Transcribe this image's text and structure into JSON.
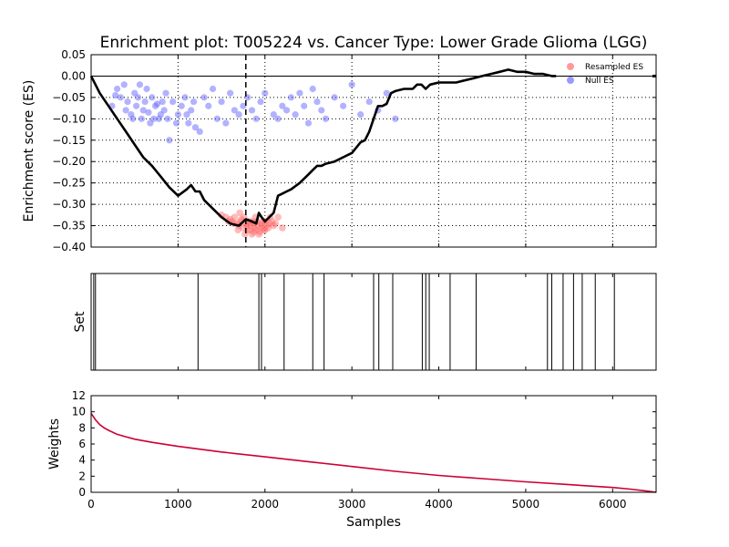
{
  "chart_data": {
    "title": "Enrichment plot: T005224 vs. Cancer Type: Lower Grade Glioma (LGG)",
    "panels": [
      {
        "name": "enrichment",
        "type": "line+scatter",
        "ylabel": "Enrichment score (ES)",
        "xlim": [
          0,
          6500
        ],
        "ylim": [
          -0.4,
          0.05
        ],
        "yticks": [
          0.05,
          0.0,
          -0.05,
          -0.1,
          -0.15,
          -0.2,
          -0.25,
          -0.3,
          -0.35,
          -0.4
        ],
        "ytick_labels": [
          "0.05",
          "0.00",
          "−0.05",
          "−0.10",
          "−0.15",
          "−0.20",
          "−0.25",
          "−0.30",
          "−0.35",
          "−0.40"
        ],
        "xticks": [
          0,
          1000,
          2000,
          3000,
          4000,
          5000,
          6000
        ],
        "grid": true,
        "vline_x": 1780,
        "legend": {
          "placement": "top-right",
          "entries": [
            {
              "label": "Resampled ES",
              "color": "#ff9999"
            },
            {
              "label": "Null ES",
              "color": "#9999ff"
            }
          ]
        },
        "es_curve": {
          "color": "#000000",
          "x": [
            0,
            100,
            200,
            300,
            400,
            500,
            600,
            700,
            800,
            900,
            1000,
            1100,
            1150,
            1200,
            1250,
            1300,
            1400,
            1500,
            1600,
            1700,
            1780,
            1850,
            1900,
            1930,
            1960,
            2000,
            2100,
            2150,
            2200,
            2250,
            2300,
            2400,
            2500,
            2550,
            2600,
            2650,
            2700,
            2800,
            2900,
            3000,
            3100,
            3150,
            3200,
            3250,
            3300,
            3350,
            3400,
            3450,
            3500,
            3600,
            3700,
            3750,
            3800,
            3850,
            3900,
            4000,
            4100,
            4200,
            4300,
            4400,
            4500,
            4600,
            4700,
            4800,
            4900,
            5000,
            5100,
            5200,
            5300,
            5350
          ],
          "y": [
            0.0,
            -0.04,
            -0.07,
            -0.1,
            -0.13,
            -0.16,
            -0.19,
            -0.21,
            -0.235,
            -0.26,
            -0.28,
            -0.265,
            -0.255,
            -0.27,
            -0.27,
            -0.29,
            -0.31,
            -0.33,
            -0.345,
            -0.35,
            -0.335,
            -0.34,
            -0.345,
            -0.32,
            -0.33,
            -0.34,
            -0.32,
            -0.28,
            -0.275,
            -0.27,
            -0.265,
            -0.25,
            -0.23,
            -0.22,
            -0.21,
            -0.21,
            -0.205,
            -0.2,
            -0.19,
            -0.18,
            -0.155,
            -0.15,
            -0.13,
            -0.1,
            -0.07,
            -0.07,
            -0.065,
            -0.04,
            -0.035,
            -0.03,
            -0.03,
            -0.02,
            -0.02,
            -0.03,
            -0.02,
            -0.015,
            -0.015,
            -0.015,
            -0.01,
            -0.005,
            0.0,
            0.005,
            0.01,
            0.015,
            0.01,
            0.01,
            0.005,
            0.005,
            0.0,
            0.0
          ]
        },
        "resampled_es": {
          "color": "#ff6666",
          "x": [
            1500,
            1550,
            1600,
            1620,
            1650,
            1680,
            1700,
            1720,
            1750,
            1760,
            1780,
            1800,
            1820,
            1840,
            1850,
            1870,
            1880,
            1900,
            1910,
            1920,
            1940,
            1960,
            1980,
            2000,
            2020,
            2050,
            2080,
            2100,
            2150,
            2200,
            1690,
            1730,
            1770,
            1810,
            1830,
            1860,
            1890,
            1930,
            1950,
            1970,
            1990,
            2010,
            2040,
            2060,
            2120,
            1580,
            1640,
            1710,
            1790,
            1870
          ],
          "y": [
            -0.325,
            -0.33,
            -0.335,
            -0.34,
            -0.33,
            -0.345,
            -0.35,
            -0.34,
            -0.355,
            -0.33,
            -0.345,
            -0.36,
            -0.34,
            -0.35,
            -0.37,
            -0.345,
            -0.355,
            -0.36,
            -0.34,
            -0.35,
            -0.365,
            -0.355,
            -0.34,
            -0.36,
            -0.35,
            -0.345,
            -0.34,
            -0.35,
            -0.33,
            -0.355,
            -0.36,
            -0.335,
            -0.37,
            -0.345,
            -0.36,
            -0.34,
            -0.33,
            -0.37,
            -0.345,
            -0.35,
            -0.36,
            -0.34,
            -0.355,
            -0.33,
            -0.345,
            -0.34,
            -0.345,
            -0.32,
            -0.35,
            -0.365
          ]
        },
        "null_es": {
          "color": "#6666ff",
          "x": [
            240,
            280,
            300,
            340,
            380,
            400,
            420,
            460,
            480,
            500,
            520,
            540,
            560,
            580,
            600,
            620,
            640,
            660,
            680,
            700,
            720,
            740,
            760,
            780,
            800,
            820,
            840,
            860,
            880,
            900,
            940,
            980,
            1000,
            1040,
            1080,
            1100,
            1120,
            1150,
            1180,
            1200,
            1250,
            1300,
            1350,
            1400,
            1450,
            1500,
            1550,
            1600,
            1650,
            1700,
            1750,
            1800,
            1850,
            1900,
            1950,
            2000,
            2100,
            2150,
            2200,
            2250,
            2300,
            2350,
            2400,
            2450,
            2500,
            2550,
            2600,
            2650,
            2700,
            2800,
            2900,
            3000,
            3100,
            3200,
            3300,
            3400,
            3500
          ],
          "y": [
            -0.07,
            -0.045,
            -0.03,
            -0.05,
            -0.02,
            -0.08,
            -0.06,
            -0.09,
            -0.1,
            -0.04,
            -0.07,
            -0.05,
            -0.02,
            -0.1,
            -0.08,
            -0.06,
            -0.03,
            -0.085,
            -0.11,
            -0.05,
            -0.1,
            -0.07,
            -0.065,
            -0.1,
            -0.09,
            -0.06,
            -0.08,
            -0.04,
            -0.1,
            -0.15,
            -0.06,
            -0.11,
            -0.09,
            -0.07,
            -0.05,
            -0.09,
            -0.11,
            -0.08,
            -0.06,
            -0.12,
            -0.13,
            -0.05,
            -0.07,
            -0.03,
            -0.1,
            -0.06,
            -0.11,
            -0.04,
            -0.08,
            -0.09,
            -0.07,
            -0.05,
            -0.08,
            -0.1,
            -0.06,
            -0.04,
            -0.09,
            -0.1,
            -0.07,
            -0.08,
            -0.05,
            -0.09,
            -0.04,
            -0.07,
            -0.11,
            -0.03,
            -0.06,
            -0.08,
            -0.1,
            -0.05,
            -0.07,
            -0.02,
            -0.09,
            -0.06,
            -0.08,
            -0.04,
            -0.1
          ]
        }
      },
      {
        "name": "set",
        "type": "barcode",
        "ylabel": "Set",
        "xlim": [
          0,
          6500
        ],
        "positions": [
          30,
          50,
          1230,
          1930,
          1960,
          2220,
          2550,
          2680,
          3250,
          3310,
          3470,
          3810,
          3850,
          3890,
          4130,
          4430,
          5250,
          5300,
          5430,
          5550,
          5650,
          5800,
          6020
        ]
      },
      {
        "name": "weights",
        "type": "line",
        "ylabel": "Weights",
        "xlabel": "Samples",
        "xlim": [
          0,
          6500
        ],
        "ylim": [
          0,
          12
        ],
        "yticks": [
          0,
          2,
          4,
          6,
          8,
          10,
          12
        ],
        "xticks": [
          0,
          1000,
          2000,
          3000,
          4000,
          5000,
          6000
        ],
        "color": "#cc0033",
        "x": [
          0,
          50,
          100,
          150,
          200,
          300,
          400,
          500,
          700,
          1000,
          1500,
          2000,
          2500,
          3000,
          3500,
          4000,
          4500,
          5000,
          5500,
          6000,
          6200,
          6400,
          6500
        ],
        "y": [
          9.8,
          9.0,
          8.4,
          8.0,
          7.7,
          7.2,
          6.9,
          6.6,
          6.2,
          5.7,
          5.0,
          4.4,
          3.8,
          3.2,
          2.6,
          2.1,
          1.7,
          1.3,
          0.95,
          0.6,
          0.4,
          0.15,
          0.0
        ]
      }
    ]
  }
}
